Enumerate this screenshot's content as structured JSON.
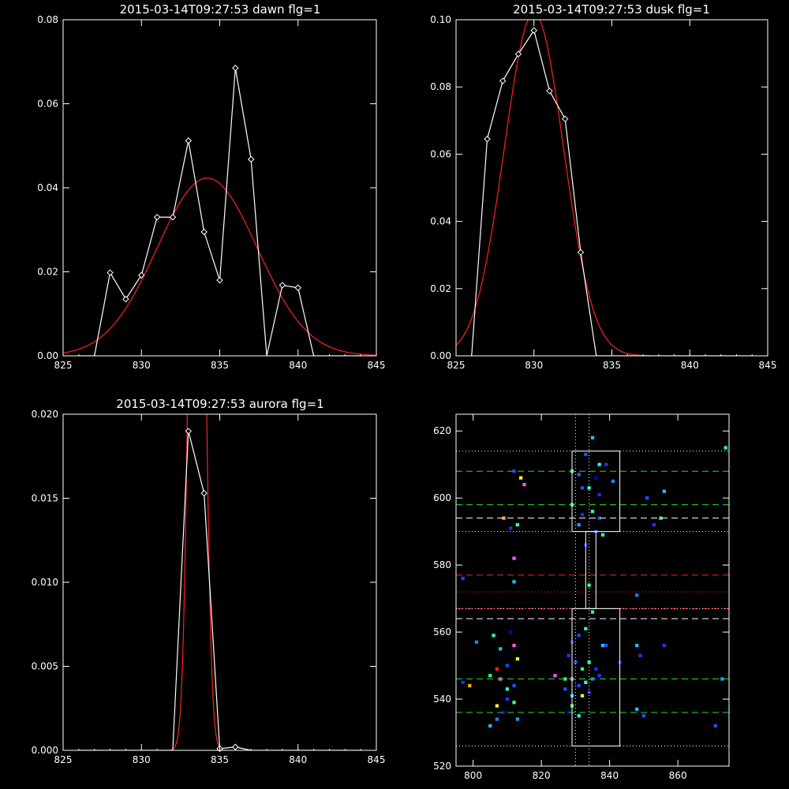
{
  "colors": {
    "background": "#000000",
    "axes": "#ffffff",
    "data": "#ffffff",
    "fit": "#ff2020",
    "green_line": "#22dd22",
    "white_line": "#ffffff",
    "red_line": "#ff2020"
  },
  "chart_data": [
    {
      "type": "line",
      "title": "2015-03-14T09:27:53 dawn flg=1",
      "xlim": [
        825,
        845
      ],
      "ylim": [
        0,
        0.08
      ],
      "xticks": [
        825,
        830,
        835,
        840,
        845
      ],
      "yticks": [
        0,
        0.02,
        0.04,
        0.06,
        0.08
      ],
      "ytick_labels": [
        "0.00",
        "0.02",
        "0.04",
        "0.06",
        "0.08"
      ],
      "grid": false,
      "series": [
        {
          "role": "data",
          "marker": "diamond",
          "x": [
            826,
            827,
            828,
            829,
            830,
            831,
            832,
            833,
            834,
            835,
            836,
            837,
            838,
            839,
            840,
            841,
            842,
            843,
            844
          ],
          "y": [
            0,
            0,
            0.0198,
            0.0135,
            0.0192,
            0.033,
            0.033,
            0.0512,
            0.0295,
            0.018,
            0.0685,
            0.0468,
            0,
            0.0168,
            0.0162,
            0,
            0,
            0,
            0
          ]
        },
        {
          "role": "fit",
          "shape": "gaussian",
          "amplitude": 0.0423,
          "center": 834.2,
          "sigma": 3.2
        }
      ]
    },
    {
      "type": "line",
      "title": "2015-03-14T09:27:53 dusk flg=1",
      "xlim": [
        825,
        845
      ],
      "ylim": [
        0,
        0.1
      ],
      "xticks": [
        825,
        830,
        835,
        840,
        845
      ],
      "yticks": [
        0,
        0.02,
        0.04,
        0.06,
        0.08,
        0.1
      ],
      "ytick_labels": [
        "0.00",
        "0.02",
        "0.04",
        "0.06",
        "0.08",
        "0.10"
      ],
      "grid": false,
      "series": [
        {
          "role": "data",
          "marker": "diamond",
          "x": [
            826,
            827,
            828,
            829,
            830,
            831,
            832,
            833,
            834,
            835,
            836,
            837,
            838,
            839,
            840,
            841,
            842,
            843,
            844
          ],
          "y": [
            0,
            0.0645,
            0.0818,
            0.0898,
            0.0968,
            0.0788,
            0.0705,
            0.0308,
            0,
            0,
            0,
            0,
            0,
            0,
            0,
            0,
            0,
            0,
            0
          ]
        },
        {
          "role": "fit",
          "shape": "gaussian",
          "amplitude": 0.102,
          "center": 830.0,
          "sigma": 1.9
        }
      ]
    },
    {
      "type": "line",
      "title": "2015-03-14T09:27:53 aurora flg=1",
      "xlim": [
        825,
        845
      ],
      "ylim": [
        0,
        0.02
      ],
      "xticks": [
        825,
        830,
        835,
        840,
        845
      ],
      "yticks": [
        0,
        0.005,
        0.01,
        0.015,
        0.02
      ],
      "ytick_labels": [
        "0.000",
        "0.005",
        "0.010",
        "0.015",
        "0.020"
      ],
      "grid": false,
      "series": [
        {
          "role": "data",
          "marker": "diamond",
          "x": [
            826,
            827,
            828,
            829,
            830,
            831,
            832,
            833,
            834,
            835,
            836,
            837,
            838,
            839,
            840,
            841,
            842,
            843,
            844
          ],
          "y": [
            0,
            0,
            0,
            0,
            0,
            0,
            0,
            0.019,
            0.0153,
            0.0001,
            0.0002,
            0,
            0,
            0,
            0,
            0,
            0,
            0,
            0
          ]
        },
        {
          "role": "fit",
          "shape": "gaussian",
          "amplitude": 0.06,
          "center": 833.55,
          "sigma": 0.42
        }
      ]
    },
    {
      "type": "heatmap",
      "title": "",
      "xlim": [
        795,
        875
      ],
      "ylim": [
        520,
        625
      ],
      "xticks": [
        800,
        820,
        840,
        860
      ],
      "yticks": [
        520,
        540,
        560,
        580,
        600,
        620
      ],
      "grid": false,
      "vlines_dotted": [
        830,
        834
      ],
      "hlines": [
        {
          "y": 614,
          "style": "dotted",
          "color": "white"
        },
        {
          "y": 608,
          "style": "dashed",
          "color": "green"
        },
        {
          "y": 598,
          "style": "dashed",
          "color": "green"
        },
        {
          "y": 594,
          "style": "dashed",
          "color": "white"
        },
        {
          "y": 590,
          "style": "dotted",
          "color": "white"
        },
        {
          "y": 577,
          "style": "dashed",
          "color": "red"
        },
        {
          "y": 572,
          "style": "dotted",
          "color": "red"
        },
        {
          "y": 567,
          "style": "dashed",
          "color": "red"
        },
        {
          "y": 567,
          "style": "dotted",
          "color": "white"
        },
        {
          "y": 564,
          "style": "dashed",
          "color": "white"
        },
        {
          "y": 546,
          "style": "dashed",
          "color": "green"
        },
        {
          "y": 536,
          "style": "dashed",
          "color": "green"
        },
        {
          "y": 526,
          "style": "dotted",
          "color": "white"
        }
      ],
      "boxes": [
        {
          "x0": 829,
          "x1": 843,
          "y0": 590,
          "y1": 614
        },
        {
          "x0": 833,
          "x1": 836,
          "y0": 567,
          "y1": 590
        },
        {
          "x0": 829,
          "x1": 843,
          "y0": 526,
          "y1": 567
        }
      ],
      "pixels": [
        [
          874,
          615,
          "#33ff77"
        ],
        [
          835,
          618,
          "#22bbff"
        ],
        [
          833,
          613,
          "#1f4fff"
        ],
        [
          837,
          610,
          "#22ffcc"
        ],
        [
          839,
          610,
          "#2233ff"
        ],
        [
          829,
          608,
          "#33ff77"
        ],
        [
          831,
          607,
          "#2266ff"
        ],
        [
          836,
          606,
          "#0000cc"
        ],
        [
          841,
          605,
          "#1f7fff"
        ],
        [
          812,
          608,
          "#2244ff"
        ],
        [
          814,
          606,
          "#ffee22"
        ],
        [
          815,
          604,
          "#ff55ff"
        ],
        [
          832,
          603,
          "#1f4fff"
        ],
        [
          834,
          603,
          "#33ffcc"
        ],
        [
          837,
          601,
          "#1133ff"
        ],
        [
          851,
          600,
          "#1f4fff"
        ],
        [
          856,
          602,
          "#22bbff"
        ],
        [
          829,
          598,
          "#33ff77"
        ],
        [
          832,
          595,
          "#1133ff"
        ],
        [
          835,
          596,
          "#22ffaa"
        ],
        [
          837,
          594,
          "#2244ff"
        ],
        [
          855,
          594,
          "#33ff77"
        ],
        [
          853,
          592,
          "#2233ff"
        ],
        [
          809,
          594,
          "#ffaa00"
        ],
        [
          813,
          592,
          "#33ff99"
        ],
        [
          811,
          591,
          "#1133ff"
        ],
        [
          831,
          592,
          "#2299ff"
        ],
        [
          836,
          590,
          "#1f4fff"
        ],
        [
          838,
          589,
          "#22ffcc"
        ],
        [
          833,
          586,
          "#2233ff"
        ],
        [
          812,
          582,
          "#ff55ff"
        ],
        [
          797,
          576,
          "#2244ff"
        ],
        [
          812,
          575,
          "#22bbff"
        ],
        [
          834,
          574,
          "#33ff77"
        ],
        [
          848,
          571,
          "#1f7fff"
        ],
        [
          835,
          566,
          "#33ff77"
        ],
        [
          833,
          561,
          "#22ffcc"
        ],
        [
          831,
          559,
          "#2244ff"
        ],
        [
          829,
          557,
          "#1133ff"
        ],
        [
          839,
          556,
          "#1f4fff"
        ],
        [
          848,
          556,
          "#22bbff"
        ],
        [
          856,
          556,
          "#2233ff"
        ],
        [
          806,
          559,
          "#22ffaa"
        ],
        [
          801,
          557,
          "#1f7fff"
        ],
        [
          811,
          560,
          "#0000cc"
        ],
        [
          812,
          556,
          "#ff55ff"
        ],
        [
          808,
          555,
          "#22bbff"
        ],
        [
          813,
          552,
          "#ffee22"
        ],
        [
          810,
          550,
          "#2244ff"
        ],
        [
          807,
          549,
          "#ff2222"
        ],
        [
          805,
          547,
          "#33ff77"
        ],
        [
          797,
          545,
          "#1133ff"
        ],
        [
          799,
          544,
          "#ffaa00"
        ],
        [
          808,
          546,
          "#ff55ff"
        ],
        [
          810,
          543,
          "#22ffcc"
        ],
        [
          812,
          544,
          "#1f4fff"
        ],
        [
          810,
          540,
          "#2233ff"
        ],
        [
          812,
          539,
          "#33ff99"
        ],
        [
          807,
          538,
          "#ffee22"
        ],
        [
          809,
          536,
          "#0000cc"
        ],
        [
          813,
          534,
          "#2299ff"
        ],
        [
          807,
          534,
          "#1f7fff"
        ],
        [
          805,
          532,
          "#22bbff"
        ],
        [
          828,
          553,
          "#2233ff"
        ],
        [
          830,
          551,
          "#1f4fff"
        ],
        [
          832,
          549,
          "#33ff77"
        ],
        [
          834,
          551,
          "#22ffaa"
        ],
        [
          836,
          549,
          "#1133ff"
        ],
        [
          827,
          546,
          "#33ff77"
        ],
        [
          829,
          546,
          "#ff55ff"
        ],
        [
          831,
          544,
          "#2244ff"
        ],
        [
          833,
          545,
          "#22ffcc"
        ],
        [
          835,
          546,
          "#1f7fff"
        ],
        [
          827,
          543,
          "#1f4fff"
        ],
        [
          829,
          541,
          "#22bbff"
        ],
        [
          832,
          541,
          "#ffee22"
        ],
        [
          834,
          542,
          "#2233ff"
        ],
        [
          829,
          538,
          "#33ff77"
        ],
        [
          828,
          536,
          "#0000cc"
        ],
        [
          831,
          535,
          "#22ffcc"
        ],
        [
          824,
          547,
          "#ff55ff"
        ],
        [
          837,
          547,
          "#1133ff"
        ],
        [
          838,
          556,
          "#22bbff"
        ],
        [
          849,
          553,
          "#2233ff"
        ],
        [
          848,
          537,
          "#22bbff"
        ],
        [
          850,
          535,
          "#1f4fff"
        ],
        [
          873,
          546,
          "#2299ff"
        ],
        [
          871,
          532,
          "#1f4fff"
        ],
        [
          843,
          551,
          "#1133ff"
        ]
      ]
    }
  ]
}
